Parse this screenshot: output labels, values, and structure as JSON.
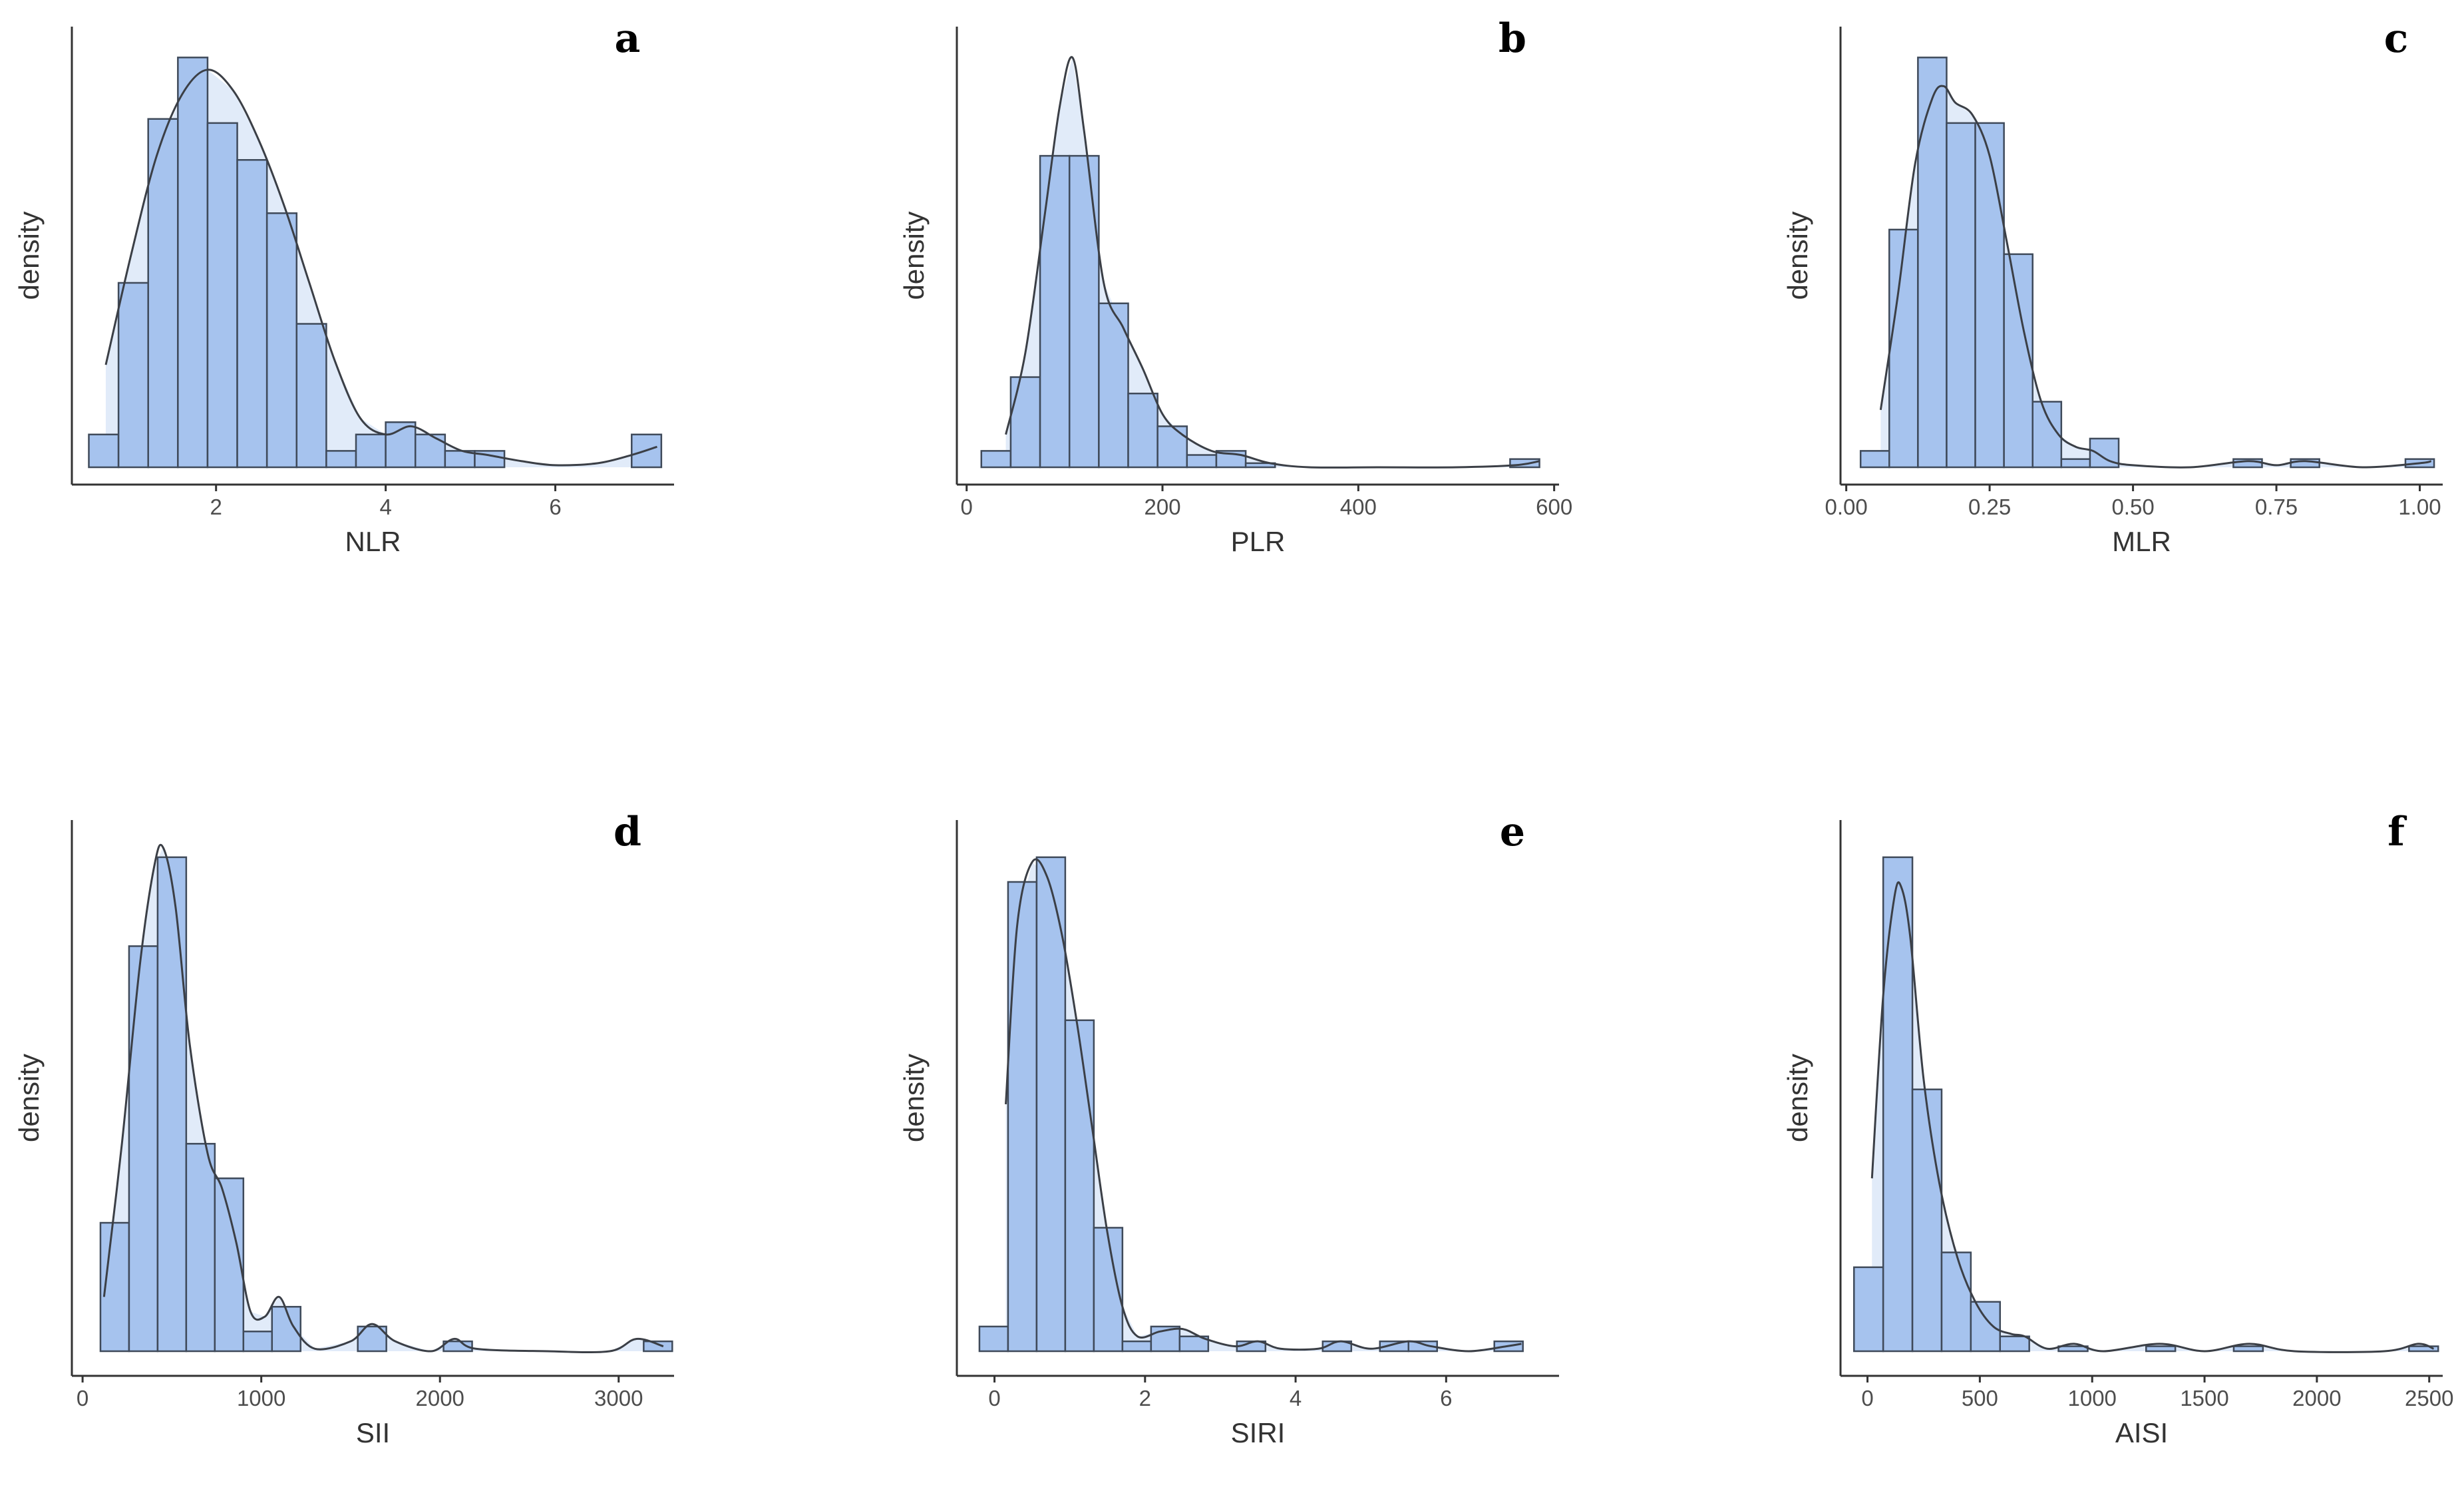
{
  "chart_data": [
    {
      "type": "histogram",
      "panel_label": "a",
      "xlabel": "NLR",
      "ylabel": "density",
      "xlim": [
        0.3,
        7.4
      ],
      "ymax": 1.0,
      "xticks": [
        2,
        4,
        6
      ],
      "xtick_labels": [
        "2",
        "4",
        "6"
      ],
      "bins": [
        {
          "start": 0.5,
          "end": 0.85,
          "density": 0.08
        },
        {
          "start": 0.85,
          "end": 1.2,
          "density": 0.45
        },
        {
          "start": 1.2,
          "end": 1.55,
          "density": 0.85
        },
        {
          "start": 1.55,
          "end": 1.9,
          "density": 1.0
        },
        {
          "start": 1.9,
          "end": 2.25,
          "density": 0.84
        },
        {
          "start": 2.25,
          "end": 2.6,
          "density": 0.75
        },
        {
          "start": 2.6,
          "end": 2.95,
          "density": 0.62
        },
        {
          "start": 2.95,
          "end": 3.3,
          "density": 0.35
        },
        {
          "start": 3.3,
          "end": 3.65,
          "density": 0.04
        },
        {
          "start": 3.65,
          "end": 4.0,
          "density": 0.08
        },
        {
          "start": 4.0,
          "end": 4.35,
          "density": 0.11
        },
        {
          "start": 4.35,
          "end": 4.7,
          "density": 0.08
        },
        {
          "start": 4.7,
          "end": 5.05,
          "density": 0.04
        },
        {
          "start": 5.05,
          "end": 5.4,
          "density": 0.04
        },
        {
          "start": 6.9,
          "end": 7.25,
          "density": 0.08
        }
      ],
      "density_curve": [
        [
          0.7,
          0.25
        ],
        [
          1.0,
          0.52
        ],
        [
          1.3,
          0.76
        ],
        [
          1.6,
          0.91
        ],
        [
          1.9,
          0.97
        ],
        [
          2.2,
          0.92
        ],
        [
          2.5,
          0.8
        ],
        [
          2.8,
          0.64
        ],
        [
          3.1,
          0.45
        ],
        [
          3.4,
          0.26
        ],
        [
          3.7,
          0.12
        ],
        [
          4.0,
          0.08
        ],
        [
          4.3,
          0.1
        ],
        [
          4.6,
          0.07
        ],
        [
          4.9,
          0.04
        ],
        [
          5.2,
          0.03
        ],
        [
          5.6,
          0.015
        ],
        [
          6.0,
          0.005
        ],
        [
          6.5,
          0.01
        ],
        [
          6.9,
          0.03
        ],
        [
          7.2,
          0.05
        ]
      ]
    },
    {
      "type": "histogram",
      "panel_label": "b",
      "xlabel": "PLR",
      "ylabel": "density",
      "xlim": [
        -10,
        605
      ],
      "ymax": 1.0,
      "xticks": [
        0,
        200,
        400,
        600
      ],
      "xtick_labels": [
        "0",
        "200",
        "400",
        "600"
      ],
      "bins": [
        {
          "start": 15,
          "end": 45,
          "density": 0.04
        },
        {
          "start": 45,
          "end": 75,
          "density": 0.22
        },
        {
          "start": 75,
          "end": 105,
          "density": 0.76
        },
        {
          "start": 105,
          "end": 135,
          "density": 0.76
        },
        {
          "start": 135,
          "end": 165,
          "density": 0.4
        },
        {
          "start": 165,
          "end": 195,
          "density": 0.18
        },
        {
          "start": 195,
          "end": 225,
          "density": 0.1
        },
        {
          "start": 225,
          "end": 255,
          "density": 0.03
        },
        {
          "start": 255,
          "end": 285,
          "density": 0.04
        },
        {
          "start": 285,
          "end": 315,
          "density": 0.01
        },
        {
          "start": 555,
          "end": 585,
          "density": 0.02
        }
      ],
      "density_curve": [
        [
          40,
          0.08
        ],
        [
          60,
          0.28
        ],
        [
          80,
          0.62
        ],
        [
          95,
          0.88
        ],
        [
          108,
          1.0
        ],
        [
          120,
          0.82
        ],
        [
          140,
          0.45
        ],
        [
          160,
          0.34
        ],
        [
          180,
          0.24
        ],
        [
          200,
          0.13
        ],
        [
          220,
          0.08
        ],
        [
          250,
          0.04
        ],
        [
          280,
          0.03
        ],
        [
          310,
          0.01
        ],
        [
          350,
          0.0
        ],
        [
          420,
          0.0
        ],
        [
          500,
          0.0
        ],
        [
          560,
          0.005
        ],
        [
          585,
          0.015
        ]
      ]
    },
    {
      "type": "histogram",
      "panel_label": "c",
      "xlabel": "MLR",
      "ylabel": "density",
      "xlim": [
        -0.01,
        1.04
      ],
      "ymax": 1.0,
      "xticks": [
        0.0,
        0.25,
        0.5,
        0.75,
        1.0
      ],
      "xtick_labels": [
        "0.00",
        "0.25",
        "0.50",
        "0.75",
        "1.00"
      ],
      "bins": [
        {
          "start": 0.025,
          "end": 0.075,
          "density": 0.04
        },
        {
          "start": 0.075,
          "end": 0.125,
          "density": 0.58
        },
        {
          "start": 0.125,
          "end": 0.175,
          "density": 1.0
        },
        {
          "start": 0.175,
          "end": 0.225,
          "density": 0.84
        },
        {
          "start": 0.225,
          "end": 0.275,
          "density": 0.84
        },
        {
          "start": 0.275,
          "end": 0.325,
          "density": 0.52
        },
        {
          "start": 0.325,
          "end": 0.375,
          "density": 0.16
        },
        {
          "start": 0.375,
          "end": 0.425,
          "density": 0.02
        },
        {
          "start": 0.425,
          "end": 0.475,
          "density": 0.07
        },
        {
          "start": 0.675,
          "end": 0.725,
          "density": 0.02
        },
        {
          "start": 0.775,
          "end": 0.825,
          "density": 0.02
        },
        {
          "start": 0.975,
          "end": 1.025,
          "density": 0.02
        }
      ],
      "density_curve": [
        [
          0.06,
          0.14
        ],
        [
          0.09,
          0.42
        ],
        [
          0.12,
          0.74
        ],
        [
          0.15,
          0.9
        ],
        [
          0.17,
          0.93
        ],
        [
          0.19,
          0.89
        ],
        [
          0.22,
          0.86
        ],
        [
          0.25,
          0.76
        ],
        [
          0.28,
          0.55
        ],
        [
          0.31,
          0.33
        ],
        [
          0.34,
          0.16
        ],
        [
          0.37,
          0.08
        ],
        [
          0.4,
          0.05
        ],
        [
          0.43,
          0.04
        ],
        [
          0.46,
          0.015
        ],
        [
          0.5,
          0.005
        ],
        [
          0.6,
          0.0
        ],
        [
          0.7,
          0.015
        ],
        [
          0.75,
          0.005
        ],
        [
          0.8,
          0.015
        ],
        [
          0.9,
          0.0
        ],
        [
          1.0,
          0.01
        ],
        [
          1.02,
          0.015
        ]
      ]
    },
    {
      "type": "histogram",
      "panel_label": "d",
      "xlabel": "SII",
      "ylabel": "density",
      "xlim": [
        -60,
        3310
      ],
      "ymax": 1.0,
      "xticks": [
        0,
        1000,
        2000,
        3000
      ],
      "xtick_labels": [
        "0",
        "1000",
        "2000",
        "3000"
      ],
      "bins": [
        {
          "start": 100,
          "end": 260,
          "density": 0.26
        },
        {
          "start": 260,
          "end": 420,
          "density": 0.82
        },
        {
          "start": 420,
          "end": 580,
          "density": 1.0
        },
        {
          "start": 580,
          "end": 740,
          "density": 0.42
        },
        {
          "start": 740,
          "end": 900,
          "density": 0.35
        },
        {
          "start": 900,
          "end": 1060,
          "density": 0.04
        },
        {
          "start": 1060,
          "end": 1220,
          "density": 0.09
        },
        {
          "start": 1540,
          "end": 1700,
          "density": 0.05
        },
        {
          "start": 2020,
          "end": 2180,
          "density": 0.02
        },
        {
          "start": 3140,
          "end": 3300,
          "density": 0.02
        }
      ],
      "density_curve": [
        [
          120,
          0.11
        ],
        [
          220,
          0.42
        ],
        [
          320,
          0.78
        ],
        [
          400,
          0.98
        ],
        [
          450,
          1.02
        ],
        [
          520,
          0.9
        ],
        [
          600,
          0.62
        ],
        [
          700,
          0.4
        ],
        [
          780,
          0.33
        ],
        [
          860,
          0.22
        ],
        [
          940,
          0.08
        ],
        [
          1020,
          0.07
        ],
        [
          1100,
          0.11
        ],
        [
          1180,
          0.05
        ],
        [
          1300,
          0.005
        ],
        [
          1500,
          0.02
        ],
        [
          1620,
          0.055
        ],
        [
          1750,
          0.02
        ],
        [
          1950,
          0.0
        ],
        [
          2080,
          0.025
        ],
        [
          2200,
          0.005
        ],
        [
          2600,
          0.0
        ],
        [
          2950,
          0.0
        ],
        [
          3100,
          0.025
        ],
        [
          3250,
          0.01
        ]
      ]
    },
    {
      "type": "histogram",
      "panel_label": "e",
      "xlabel": "SIRI",
      "ylabel": "density",
      "xlim": [
        -0.5,
        7.5
      ],
      "ymax": 1.0,
      "xticks": [
        0,
        2,
        4,
        6
      ],
      "xtick_labels": [
        "0",
        "2",
        "4",
        "6"
      ],
      "bins": [
        {
          "start": -0.2,
          "end": 0.18,
          "density": 0.05
        },
        {
          "start": 0.18,
          "end": 0.56,
          "density": 0.95
        },
        {
          "start": 0.56,
          "end": 0.94,
          "density": 1.0
        },
        {
          "start": 0.94,
          "end": 1.32,
          "density": 0.67
        },
        {
          "start": 1.32,
          "end": 1.7,
          "density": 0.25
        },
        {
          "start": 1.7,
          "end": 2.08,
          "density": 0.02
        },
        {
          "start": 2.08,
          "end": 2.46,
          "density": 0.05
        },
        {
          "start": 2.46,
          "end": 2.84,
          "density": 0.03
        },
        {
          "start": 3.22,
          "end": 3.6,
          "density": 0.02
        },
        {
          "start": 4.36,
          "end": 4.74,
          "density": 0.02
        },
        {
          "start": 5.12,
          "end": 5.5,
          "density": 0.02
        },
        {
          "start": 5.5,
          "end": 5.88,
          "density": 0.02
        },
        {
          "start": 6.64,
          "end": 7.02,
          "density": 0.02
        }
      ],
      "density_curve": [
        [
          0.15,
          0.5
        ],
        [
          0.3,
          0.86
        ],
        [
          0.5,
          0.99
        ],
        [
          0.7,
          0.96
        ],
        [
          0.9,
          0.84
        ],
        [
          1.1,
          0.66
        ],
        [
          1.3,
          0.45
        ],
        [
          1.5,
          0.24
        ],
        [
          1.7,
          0.09
        ],
        [
          1.9,
          0.03
        ],
        [
          2.2,
          0.04
        ],
        [
          2.5,
          0.045
        ],
        [
          2.8,
          0.025
        ],
        [
          3.2,
          0.01
        ],
        [
          3.5,
          0.02
        ],
        [
          3.8,
          0.005
        ],
        [
          4.3,
          0.005
        ],
        [
          4.6,
          0.02
        ],
        [
          5.0,
          0.005
        ],
        [
          5.5,
          0.02
        ],
        [
          5.8,
          0.01
        ],
        [
          6.3,
          0.0
        ],
        [
          6.8,
          0.01
        ],
        [
          7.0,
          0.015
        ]
      ]
    },
    {
      "type": "histogram",
      "panel_label": "f",
      "xlabel": "AISI",
      "ylabel": "density",
      "xlim": [
        -120,
        2560
      ],
      "ymax": 1.0,
      "xticks": [
        0,
        500,
        1000,
        1500,
        2000,
        2500
      ],
      "xtick_labels": [
        "0",
        "500",
        "1000",
        "1500",
        "2000",
        "2500"
      ],
      "bins": [
        {
          "start": -60,
          "end": 70,
          "density": 0.17
        },
        {
          "start": 70,
          "end": 200,
          "density": 1.0
        },
        {
          "start": 200,
          "end": 330,
          "density": 0.53
        },
        {
          "start": 330,
          "end": 460,
          "density": 0.2
        },
        {
          "start": 460,
          "end": 590,
          "density": 0.1
        },
        {
          "start": 590,
          "end": 720,
          "density": 0.03
        },
        {
          "start": 850,
          "end": 980,
          "density": 0.01
        },
        {
          "start": 1240,
          "end": 1370,
          "density": 0.01
        },
        {
          "start": 1630,
          "end": 1760,
          "density": 0.01
        },
        {
          "start": 2410,
          "end": 2540,
          "density": 0.01
        }
      ],
      "density_curve": [
        [
          20,
          0.35
        ],
        [
          70,
          0.72
        ],
        [
          120,
          0.92
        ],
        [
          150,
          0.94
        ],
        [
          190,
          0.84
        ],
        [
          250,
          0.55
        ],
        [
          320,
          0.34
        ],
        [
          400,
          0.19
        ],
        [
          480,
          0.1
        ],
        [
          560,
          0.05
        ],
        [
          640,
          0.035
        ],
        [
          700,
          0.03
        ],
        [
          800,
          0.005
        ],
        [
          920,
          0.015
        ],
        [
          1050,
          0.0
        ],
        [
          1300,
          0.015
        ],
        [
          1500,
          0.0
        ],
        [
          1700,
          0.015
        ],
        [
          1900,
          0.0
        ],
        [
          2300,
          0.0
        ],
        [
          2450,
          0.015
        ],
        [
          2520,
          0.005
        ]
      ]
    }
  ]
}
